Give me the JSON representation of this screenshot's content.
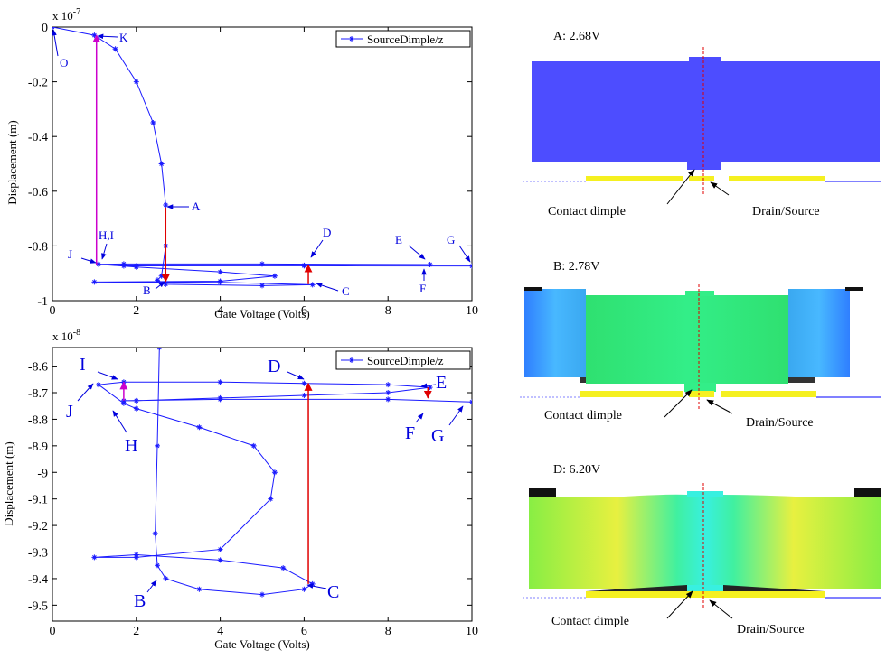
{
  "chart_data": [
    {
      "type": "line",
      "xlabel": "Gate Voltage (Volts)",
      "ylabel": "Displacement (m)",
      "scale_base": "x 10",
      "scale_exponent": "-7",
      "xlim": [
        0,
        10
      ],
      "ylim": [
        -1,
        0
      ],
      "xticks": [
        0,
        2,
        4,
        6,
        8,
        10
      ],
      "yticks": [
        0,
        -0.2,
        -0.4,
        -0.6,
        -0.8,
        -1
      ],
      "legend": "upper right",
      "series": [
        {
          "name": "SourceDimple/z",
          "color": "#1a1aff",
          "x": [
            0,
            1,
            1.5,
            2,
            2.4,
            2.6,
            2.7,
            2.7,
            2.6,
            2.5,
            2.7,
            5,
            6.2,
            4,
            1,
            4,
            5.3,
            4,
            2,
            1.1,
            1.7,
            5,
            9,
            6,
            2,
            1.7,
            6,
            10
          ],
          "values": [
            0,
            -0.03,
            -0.08,
            -0.2,
            -0.35,
            -0.5,
            -0.65,
            -0.8,
            -0.91,
            -0.925,
            -0.94,
            -0.945,
            -0.942,
            -0.933,
            -0.932,
            -0.929,
            -0.91,
            -0.895,
            -0.877,
            -0.867,
            -0.866,
            -0.866,
            -0.868,
            -0.871,
            -0.873,
            -0.873,
            -0.8725,
            -0.8735
          ]
        }
      ],
      "arrows": [
        {
          "x": 1.05,
          "y_from": -0.87,
          "y_to": -0.03,
          "color": "#cc00cc"
        },
        {
          "x": 2.7,
          "y_from": -0.66,
          "y_to": -0.93,
          "color": "#e00000"
        },
        {
          "x": 6.1,
          "y_from": -0.94,
          "y_to": -0.87,
          "color": "#e00000"
        }
      ],
      "annotations": [
        "O",
        "K",
        "A",
        "B",
        "C",
        "D",
        "E",
        "F",
        "G",
        "H,I",
        "J"
      ]
    },
    {
      "type": "line",
      "xlabel": "Gate Voltage (Volts)",
      "ylabel": "Displacement (m)",
      "scale_base": "x 10",
      "scale_exponent": "-8",
      "xlim": [
        0,
        10
      ],
      "ylim": [
        -9.56,
        -8.53
      ],
      "xticks": [
        0,
        2,
        4,
        6,
        8,
        10
      ],
      "yticks": [
        -8.6,
        -8.7,
        -8.8,
        -8.9,
        -9,
        -9.1,
        -9.2,
        -9.3,
        -9.4,
        -9.5
      ],
      "legend": "upper right",
      "series": [
        {
          "name": "SourceDimple/z",
          "color": "#1a1aff",
          "x": [
            2.55,
            2.5,
            2.45,
            2.5,
            2.7,
            3.5,
            5,
            6,
            6.2,
            5.5,
            4,
            2,
            1,
            2,
            4,
            5.2,
            5.3,
            4.8,
            3.5,
            2,
            1.7,
            1.1,
            1.7,
            4,
            6,
            8,
            9,
            8,
            6,
            4,
            2,
            1.7,
            4,
            8,
            10
          ],
          "values": [
            -8.53,
            -8.9,
            -9.23,
            -9.35,
            -9.4,
            -9.44,
            -9.46,
            -9.44,
            -9.42,
            -9.36,
            -9.33,
            -9.31,
            -9.32,
            -9.32,
            -9.29,
            -9.1,
            -9,
            -8.9,
            -8.83,
            -8.76,
            -8.74,
            -8.67,
            -8.66,
            -8.66,
            -8.665,
            -8.67,
            -8.68,
            -8.7,
            -8.71,
            -8.72,
            -8.73,
            -8.73,
            -8.725,
            -8.725,
            -8.735
          ]
        }
      ],
      "arrows": [
        {
          "x": 6.1,
          "y_from": -9.42,
          "y_to": -8.665,
          "color": "#e00000"
        },
        {
          "x": 1.7,
          "y_from": -8.73,
          "y_to": -8.66,
          "color": "#cc00cc"
        },
        {
          "x": 8.95,
          "y_from": -8.68,
          "y_to": -8.72,
          "color": "#e00000"
        }
      ],
      "annotations": [
        "I",
        "D",
        "E",
        "J",
        "H",
        "F",
        "G",
        "B",
        "C"
      ]
    }
  ],
  "panels": [
    {
      "title": "A: 2.68V",
      "left_label": "Contact dimple",
      "right_label": "Drain/Source"
    },
    {
      "title": "B: 2.78V",
      "left_label": "Contact dimple",
      "right_label": "Drain/Source"
    },
    {
      "title": "D: 6.20V",
      "left_label": "Contact dimple",
      "right_label": "Drain/Source"
    }
  ]
}
